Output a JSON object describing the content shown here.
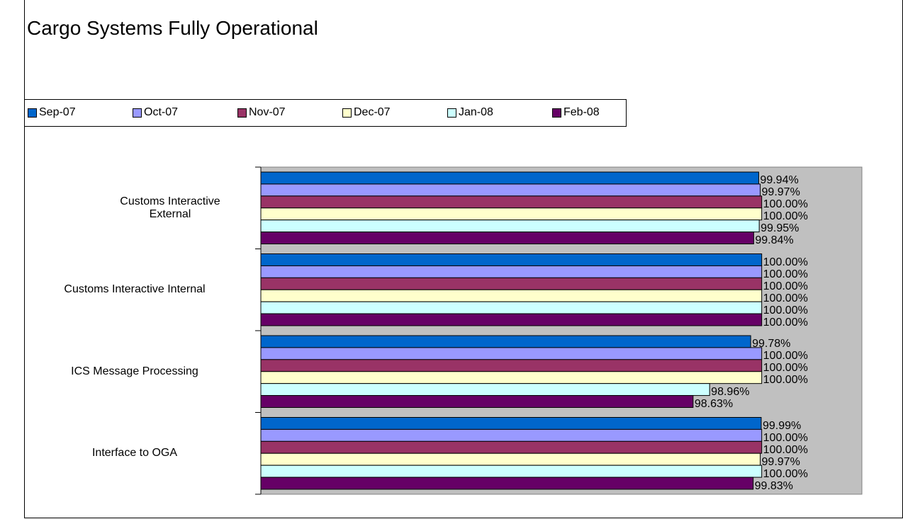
{
  "chart_data": {
    "type": "barh",
    "title": "Cargo Systems Fully Operational",
    "categories": [
      "Customs Interactive External",
      "Customs Interactive Internal",
      "ICS Message Processing",
      "Interface to OGA"
    ],
    "series": [
      {
        "name": "Sep-07",
        "color": "#0066cc",
        "values": [
          99.94,
          100.0,
          99.78,
          99.99
        ],
        "value_labels": [
          "99.94%",
          "100.00%",
          "99.78%",
          "99.99%"
        ]
      },
      {
        "name": "Oct-07",
        "color": "#9999ff",
        "values": [
          99.97,
          100.0,
          100.0,
          100.0
        ],
        "value_labels": [
          "99.97%",
          "100.00%",
          "100.00%",
          "100.00%"
        ]
      },
      {
        "name": "Nov-07",
        "color": "#993366",
        "values": [
          100.0,
          100.0,
          100.0,
          100.0
        ],
        "value_labels": [
          "100.00%",
          "100.00%",
          "100.00%",
          "100.00%"
        ]
      },
      {
        "name": "Dec-07",
        "color": "#ffffcc",
        "values": [
          100.0,
          100.0,
          100.0,
          99.97
        ],
        "value_labels": [
          "100.00%",
          "100.00%",
          "100.00%",
          "99.97%"
        ]
      },
      {
        "name": "Jan-08",
        "color": "#ccffff",
        "values": [
          99.95,
          100.0,
          98.96,
          100.0
        ],
        "value_labels": [
          "99.95%",
          "100.00%",
          "98.96%",
          "100.00%"
        ]
      },
      {
        "name": "Feb-08",
        "color": "#660066",
        "values": [
          99.84,
          100.0,
          98.63,
          99.83
        ],
        "value_labels": [
          "99.84%",
          "100.00%",
          "98.63%",
          "99.83%"
        ]
      }
    ],
    "xlim": [
      90,
      102
    ],
    "legend": "top",
    "plot_background": "#c0c0c0"
  }
}
